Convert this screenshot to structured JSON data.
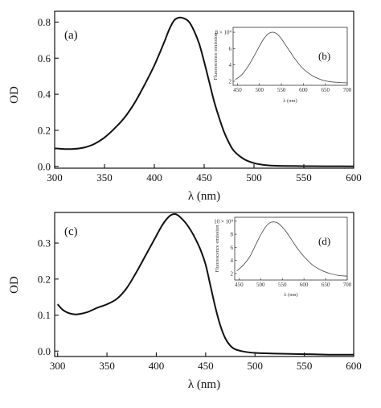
{
  "chart_data": [
    {
      "type": "line",
      "panel": "(a)",
      "xlabel": "λ (nm)",
      "ylabel": "OD",
      "xlim": [
        300,
        600
      ],
      "ylim": [
        -0.01,
        0.86
      ],
      "xticks": [
        300,
        350,
        400,
        450,
        500,
        550,
        600
      ],
      "yticks": [
        0.0,
        0.2,
        0.4,
        0.6,
        0.8
      ],
      "ytick_labels": [
        "0.0",
        "0.2",
        "0.4",
        "0.6",
        "0.8"
      ],
      "series": [
        {
          "x": [
            300,
            310,
            320,
            330,
            340,
            350,
            360,
            370,
            380,
            390,
            400,
            410,
            415,
            420,
            425,
            430,
            435,
            440,
            445,
            450,
            455,
            460,
            465,
            470,
            475,
            480,
            490,
            500,
            510,
            520,
            540,
            560,
            580,
            600
          ],
          "values": [
            0.1,
            0.096,
            0.097,
            0.105,
            0.125,
            0.16,
            0.21,
            0.27,
            0.35,
            0.45,
            0.56,
            0.69,
            0.76,
            0.81,
            0.825,
            0.82,
            0.8,
            0.75,
            0.68,
            0.58,
            0.47,
            0.36,
            0.27,
            0.19,
            0.13,
            0.085,
            0.04,
            0.018,
            0.008,
            0.004,
            0.002,
            0.001,
            0.0005,
            0.0
          ]
        }
      ],
      "inset": {
        "panel": "(b)",
        "xlabel": "λ (nm)",
        "ylabel": "Fluorescence emission",
        "xlim": [
          440,
          700
        ],
        "ylim": [
          1.5,
          8.6
        ],
        "xticks": [
          450,
          500,
          550,
          600,
          650,
          700
        ],
        "yticks": [
          2,
          4,
          6,
          8
        ],
        "ytick_labels": [
          "2",
          "4",
          "6",
          "8 × 10⁴"
        ],
        "series": [
          {
            "x": [
              445,
              460,
              475,
              490,
              500,
              510,
              520,
              530,
              540,
              550,
              560,
              570,
              580,
              590,
              600,
              620,
              640,
              660,
              680,
              700
            ],
            "values": [
              2.2,
              2.8,
              3.9,
              5.3,
              6.3,
              7.2,
              7.8,
              8.0,
              7.8,
              7.2,
              6.4,
              5.6,
              4.8,
              4.1,
              3.5,
              2.7,
              2.2,
              1.95,
              1.85,
              1.8
            ]
          }
        ]
      }
    },
    {
      "type": "line",
      "panel": "(c)",
      "xlabel": "λ (nm)",
      "ylabel": "OD",
      "xlim": [
        297,
        600
      ],
      "ylim": [
        -0.015,
        0.385
      ],
      "xticks": [
        300,
        350,
        400,
        450,
        500,
        550,
        600
      ],
      "yticks": [
        0.0,
        0.1,
        0.2,
        0.3
      ],
      "ytick_labels": [
        "0.0",
        "0.1",
        "0.2",
        "0.3"
      ],
      "series": [
        {
          "x": [
            300,
            305,
            310,
            315,
            320,
            330,
            340,
            350,
            360,
            370,
            380,
            390,
            400,
            405,
            410,
            415,
            420,
            425,
            430,
            435,
            440,
            445,
            450,
            455,
            460,
            465,
            470,
            475,
            480,
            490,
            500,
            520,
            540,
            560,
            580,
            600
          ],
          "values": [
            0.13,
            0.115,
            0.107,
            0.103,
            0.102,
            0.108,
            0.12,
            0.13,
            0.145,
            0.175,
            0.22,
            0.27,
            0.32,
            0.345,
            0.365,
            0.378,
            0.38,
            0.37,
            0.355,
            0.335,
            0.31,
            0.28,
            0.24,
            0.18,
            0.12,
            0.07,
            0.035,
            0.015,
            0.005,
            -0.002,
            -0.005,
            -0.007,
            -0.008,
            -0.009,
            -0.01,
            -0.01
          ]
        }
      ],
      "inset": {
        "panel": "(d)",
        "xlabel": "λ (nm)",
        "ylabel": "Fluorescence emission",
        "xlim": [
          440,
          700
        ],
        "ylim": [
          1.0,
          10.6
        ],
        "xticks": [
          450,
          500,
          550,
          600,
          650,
          700
        ],
        "yticks": [
          2,
          4,
          6,
          8,
          10
        ],
        "ytick_labels": [
          "2",
          "4",
          "6",
          "8",
          "10 × 10⁴"
        ],
        "series": [
          {
            "x": [
              445,
              460,
              475,
              490,
              500,
              510,
              520,
              530,
              540,
              550,
              560,
              570,
              580,
              590,
              600,
              620,
              640,
              660,
              680,
              700
            ],
            "values": [
              2.4,
              3.3,
              4.6,
              6.6,
              7.9,
              9.0,
              9.7,
              9.9,
              9.7,
              9.1,
              8.3,
              7.3,
              6.3,
              5.4,
              4.6,
              3.3,
              2.5,
              2.0,
              1.7,
              1.6
            ]
          }
        ]
      }
    }
  ]
}
